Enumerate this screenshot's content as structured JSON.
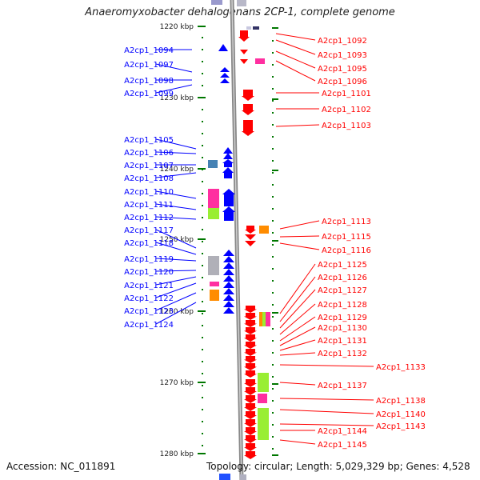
{
  "title": "Anaeromyxobacter dehalogenans 2CP-1, complete genome",
  "accession": "Accession: NC_011891",
  "topology": "Topology: circular; Length: 5,029,329 bp; Genes: 4,528",
  "axis_labels": [
    "1220 kbp",
    "1230 kbp",
    "1240 kbp",
    "1250 kbp",
    "1260 kbp",
    "1270 kbp",
    "1280 kbp"
  ],
  "colors": {
    "forward_gene": "#0000ff",
    "reverse_gene": "#ff0000",
    "backbone": "#888888",
    "tick": "#007700",
    "pink": "#ff2fa0",
    "lime": "#99ee33",
    "gray": "#b0b0b8",
    "orange": "#ff8c00",
    "steel": "#4682b4"
  },
  "left_labels": [
    "A2cp1_1094",
    "A2cp1_1097",
    "A2cp1_1098",
    "A2cp1_1099",
    "A2cp1_1105",
    "A2cp1_1106",
    "A2cp1_1107",
    "A2cp1_1108",
    "A2cp1_1110",
    "A2cp1_1111",
    "A2cp1_1112",
    "A2cp1_1117",
    "A2cp1_1118",
    "A2cp1_1119",
    "A2cp1_1120",
    "A2cp1_1121",
    "A2cp1_1122",
    "A2cp1_1123",
    "A2cp1_1124"
  ],
  "right_labels": [
    "A2cp1_1092",
    "A2cp1_1093",
    "A2cp1_1095",
    "A2cp1_1096",
    "A2cp1_1101",
    "A2cp1_1102",
    "A2cp1_1103",
    "A2cp1_1113",
    "A2cp1_1115",
    "A2cp1_1116",
    "A2cp1_1125",
    "A2cp1_1126",
    "A2cp1_1127",
    "A2cp1_1128",
    "A2cp1_1129",
    "A2cp1_1130",
    "A2cp1_1131",
    "A2cp1_1132",
    "A2cp1_1133",
    "A2cp1_1137",
    "A2cp1_1138",
    "A2cp1_1140",
    "A2cp1_1143",
    "A2cp1_1144",
    "A2cp1_1145"
  ]
}
